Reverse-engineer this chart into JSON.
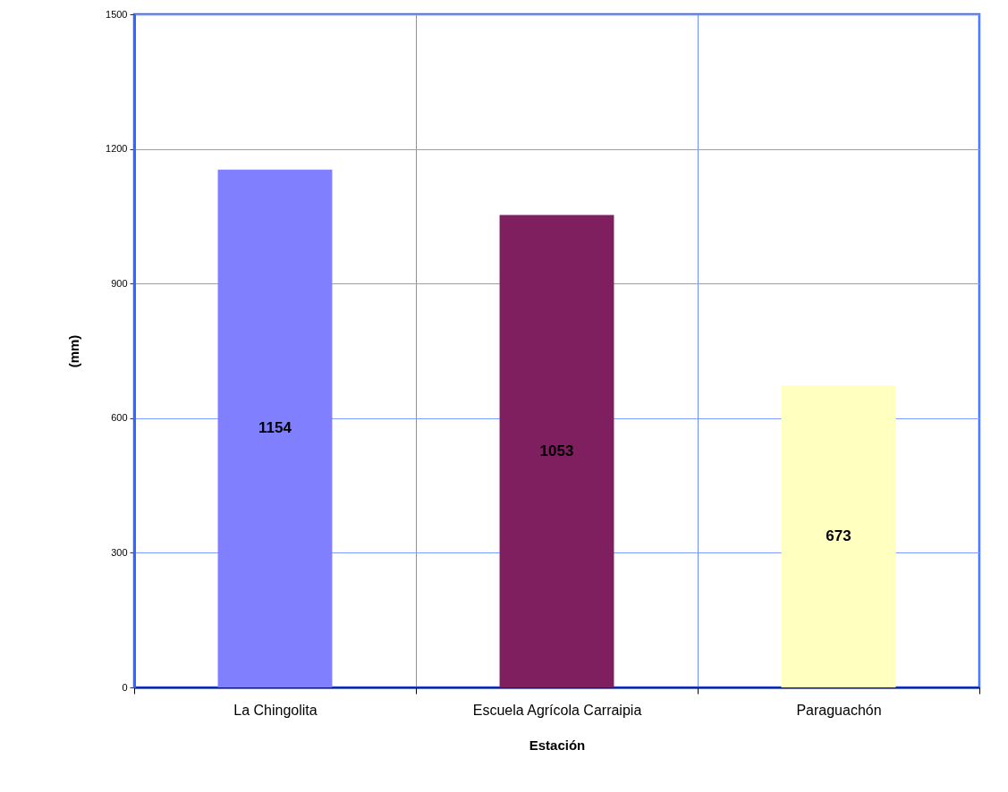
{
  "chart_data": {
    "type": "bar",
    "xlabel": "Estación",
    "ylabel": "(mm)",
    "categories": [
      "La Chingolita",
      "Escuela Agrícola Carraipia",
      "Paraguachón"
    ],
    "values": [
      1154,
      1053,
      673
    ],
    "colors": [
      "#8080ff",
      "#7f1f5f",
      "#ffffc0"
    ],
    "ylim": [
      0,
      1500
    ],
    "yticks": [
      0,
      300,
      600,
      900,
      1200,
      1500
    ],
    "grid": true,
    "data_labels": true
  }
}
